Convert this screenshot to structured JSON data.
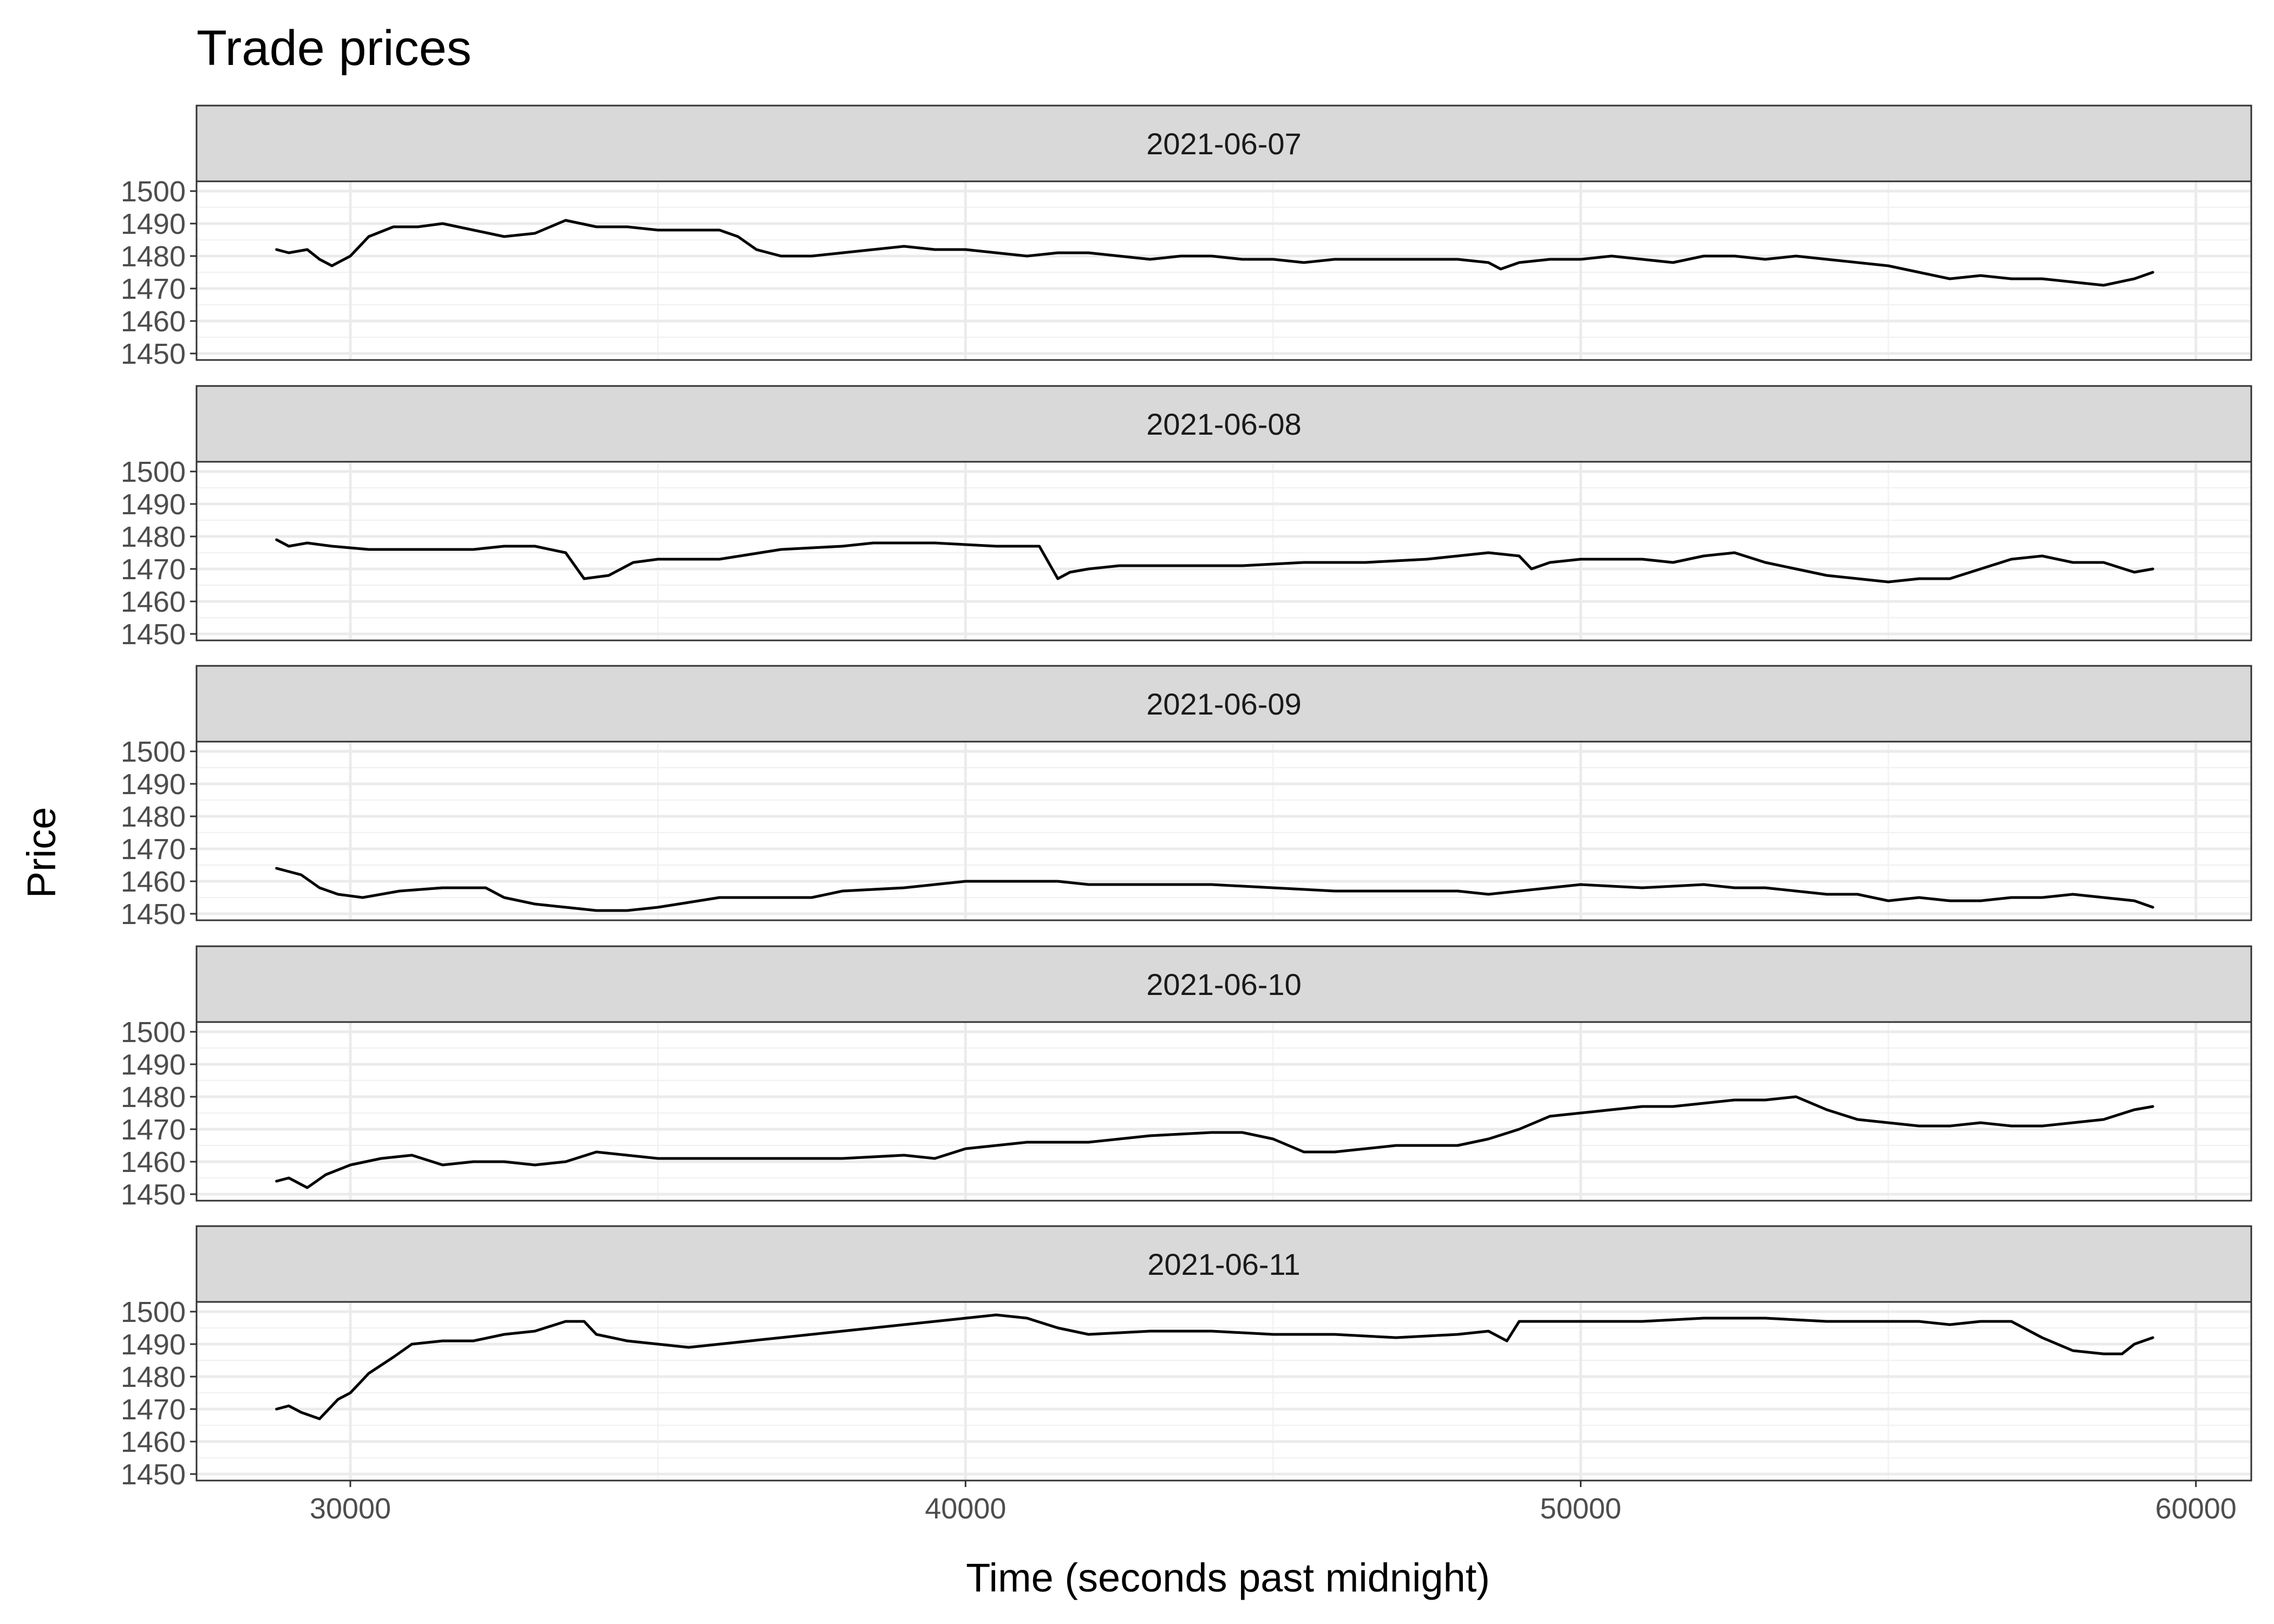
{
  "chart_data": {
    "type": "line",
    "title": "Trade prices",
    "xlabel": "Time (seconds past midnight)",
    "ylabel": "Price",
    "xlim": [
      27500,
      60900
    ],
    "ylim": [
      1448,
      1503
    ],
    "x_ticks": [
      30000,
      40000,
      50000,
      60000
    ],
    "x_minor_ticks": [
      35000,
      45000,
      55000
    ],
    "y_ticks": [
      1450,
      1460,
      1470,
      1480,
      1490,
      1500
    ],
    "grid": true,
    "facet_strip_position": "top",
    "panels": [
      {
        "label": "2021-06-07",
        "x": [
          28800,
          29000,
          29300,
          29500,
          29700,
          30000,
          30300,
          30700,
          31100,
          31500,
          32000,
          32500,
          33000,
          33500,
          34000,
          34500,
          35000,
          35500,
          36000,
          36300,
          36600,
          37000,
          37500,
          38000,
          38500,
          39000,
          39500,
          40000,
          40500,
          41000,
          41500,
          42000,
          42500,
          43000,
          43500,
          44000,
          44500,
          45000,
          45500,
          46000,
          46500,
          47000,
          47500,
          48000,
          48500,
          48700,
          49000,
          49500,
          50000,
          50500,
          51000,
          51500,
          52000,
          52500,
          53000,
          53500,
          54000,
          54500,
          55000,
          55500,
          56000,
          56500,
          57000,
          57500,
          58000,
          58500,
          59000,
          59300
        ],
        "values": [
          1482,
          1481,
          1482,
          1479,
          1477,
          1480,
          1486,
          1489,
          1489,
          1490,
          1488,
          1486,
          1487,
          1491,
          1489,
          1489,
          1488,
          1488,
          1488,
          1486,
          1482,
          1480,
          1480,
          1481,
          1482,
          1483,
          1482,
          1482,
          1481,
          1480,
          1481,
          1481,
          1480,
          1479,
          1480,
          1480,
          1479,
          1479,
          1478,
          1479,
          1479,
          1479,
          1479,
          1479,
          1478,
          1476,
          1478,
          1479,
          1479,
          1480,
          1479,
          1478,
          1480,
          1480,
          1479,
          1480,
          1479,
          1478,
          1477,
          1475,
          1473,
          1474,
          1473,
          1473,
          1472,
          1471,
          1473,
          1475
        ]
      },
      {
        "label": "2021-06-08",
        "x": [
          28800,
          29000,
          29300,
          29700,
          30300,
          31000,
          32000,
          32500,
          33000,
          33500,
          33800,
          34200,
          34600,
          35000,
          36000,
          37000,
          38000,
          38500,
          39000,
          39500,
          40500,
          41200,
          41500,
          41700,
          42000,
          42500,
          43500,
          44500,
          45500,
          46500,
          47500,
          48000,
          48500,
          49000,
          49200,
          49500,
          50000,
          50500,
          51000,
          51500,
          52000,
          52500,
          53000,
          53500,
          54000,
          54500,
          55000,
          55500,
          56000,
          56500,
          57000,
          57500,
          58000,
          58500,
          59000,
          59300
        ],
        "values": [
          1479,
          1477,
          1478,
          1477,
          1476,
          1476,
          1476,
          1477,
          1477,
          1475,
          1467,
          1468,
          1472,
          1473,
          1473,
          1476,
          1477,
          1478,
          1478,
          1478,
          1477,
          1477,
          1467,
          1469,
          1470,
          1471,
          1471,
          1471,
          1472,
          1472,
          1473,
          1474,
          1475,
          1474,
          1470,
          1472,
          1473,
          1473,
          1473,
          1472,
          1474,
          1475,
          1472,
          1470,
          1468,
          1467,
          1466,
          1467,
          1467,
          1470,
          1473,
          1474,
          1472,
          1472,
          1469,
          1470
        ]
      },
      {
        "label": "2021-06-09",
        "x": [
          28800,
          29000,
          29200,
          29500,
          29800,
          30200,
          30800,
          31500,
          32200,
          32500,
          33000,
          33500,
          34000,
          34500,
          35000,
          36000,
          37000,
          37500,
          38000,
          39000,
          39500,
          40000,
          41000,
          41500,
          42000,
          42500,
          43000,
          44000,
          45000,
          46000,
          47000,
          48000,
          48500,
          49000,
          49500,
          50000,
          51000,
          52000,
          52500,
          53000,
          53500,
          54000,
          54500,
          55000,
          55500,
          56000,
          56500,
          57000,
          57500,
          58000,
          58500,
          59000,
          59300
        ],
        "values": [
          1464,
          1463,
          1462,
          1458,
          1456,
          1455,
          1457,
          1458,
          1458,
          1455,
          1453,
          1452,
          1451,
          1451,
          1452,
          1455,
          1455,
          1455,
          1457,
          1458,
          1459,
          1460,
          1460,
          1460,
          1459,
          1459,
          1459,
          1459,
          1458,
          1457,
          1457,
          1457,
          1456,
          1457,
          1458,
          1459,
          1458,
          1459,
          1458,
          1458,
          1457,
          1456,
          1456,
          1454,
          1455,
          1454,
          1454,
          1455,
          1455,
          1456,
          1455,
          1454,
          1452
        ]
      },
      {
        "label": "2021-06-10",
        "x": [
          28800,
          29000,
          29300,
          29600,
          30000,
          30500,
          31000,
          31500,
          32000,
          32500,
          33000,
          33500,
          34000,
          35000,
          36000,
          37000,
          38000,
          39000,
          39500,
          40000,
          41000,
          42000,
          43000,
          44000,
          44500,
          45000,
          45500,
          46000,
          46500,
          47000,
          47500,
          48000,
          48500,
          49000,
          49500,
          50000,
          50500,
          51000,
          51500,
          52000,
          52500,
          53000,
          53500,
          54000,
          54500,
          55000,
          55500,
          56000,
          56500,
          57000,
          57500,
          58000,
          58500,
          59000,
          59300
        ],
        "values": [
          1454,
          1455,
          1452,
          1456,
          1459,
          1461,
          1462,
          1459,
          1460,
          1460,
          1459,
          1460,
          1463,
          1461,
          1461,
          1461,
          1461,
          1462,
          1461,
          1464,
          1466,
          1466,
          1468,
          1469,
          1469,
          1467,
          1463,
          1463,
          1464,
          1465,
          1465,
          1465,
          1467,
          1470,
          1474,
          1475,
          1476,
          1477,
          1477,
          1478,
          1479,
          1479,
          1480,
          1476,
          1473,
          1472,
          1471,
          1471,
          1472,
          1471,
          1471,
          1472,
          1473,
          1476,
          1477
        ]
      },
      {
        "label": "2021-06-11",
        "x": [
          28800,
          29000,
          29200,
          29500,
          29800,
          30000,
          30300,
          30700,
          31000,
          31500,
          32000,
          32500,
          33000,
          33500,
          33800,
          34000,
          34500,
          35000,
          35500,
          36000,
          37000,
          38000,
          39000,
          40000,
          40500,
          41000,
          41500,
          42000,
          43000,
          44000,
          45000,
          46000,
          47000,
          48000,
          48500,
          48800,
          49000,
          49500,
          50000,
          51000,
          52000,
          53000,
          54000,
          55000,
          55500,
          56000,
          56500,
          57000,
          57500,
          58000,
          58500,
          58800,
          59000,
          59300
        ],
        "values": [
          1470,
          1471,
          1469,
          1467,
          1473,
          1475,
          1481,
          1486,
          1490,
          1491,
          1491,
          1493,
          1494,
          1497,
          1497,
          1493,
          1491,
          1490,
          1489,
          1490,
          1492,
          1494,
          1496,
          1498,
          1499,
          1498,
          1495,
          1493,
          1494,
          1494,
          1493,
          1493,
          1492,
          1493,
          1494,
          1491,
          1497,
          1497,
          1497,
          1497,
          1498,
          1498,
          1497,
          1497,
          1497,
          1496,
          1497,
          1497,
          1492,
          1488,
          1487,
          1487,
          1490,
          1492
        ]
      }
    ]
  }
}
